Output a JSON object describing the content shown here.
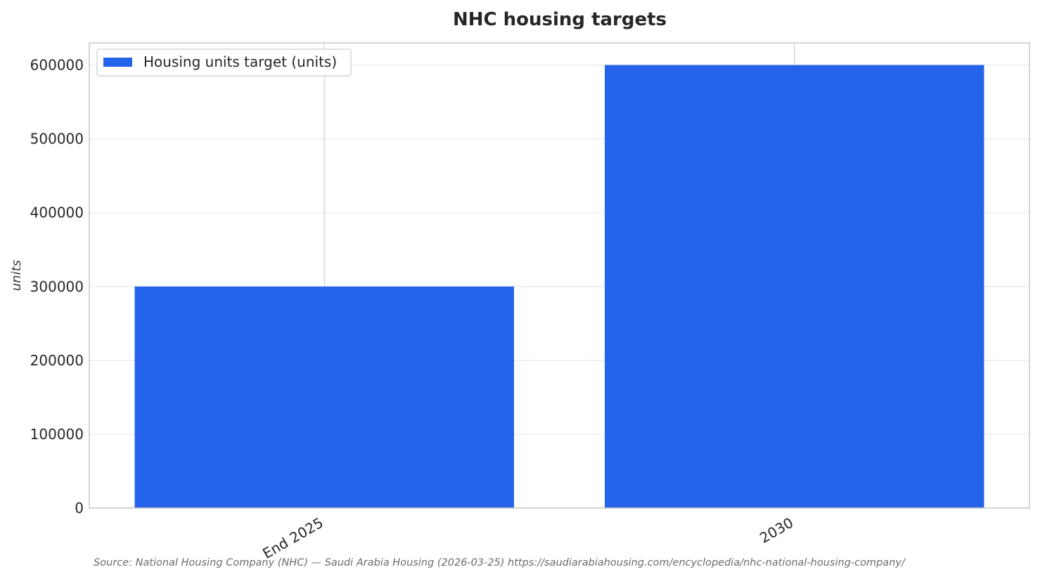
{
  "chart_data": {
    "type": "bar",
    "title": "NHC housing targets",
    "categories": [
      "End 2025",
      "2030"
    ],
    "series": [
      {
        "name": "Housing units target (units)",
        "values": [
          300000,
          600000
        ],
        "color": "#2563eb"
      }
    ],
    "ylabel": "units",
    "xlabel": "",
    "ylim": [
      0,
      630000
    ],
    "yticks": [
      0,
      100000,
      200000,
      300000,
      400000,
      500000,
      600000
    ],
    "ytick_labels": [
      "0",
      "100000",
      "200000",
      "300000",
      "400000",
      "500000",
      "600000"
    ],
    "grid": true,
    "legend_position": "top-left"
  },
  "footer": {
    "source": "Source: National Housing Company (NHC) — Saudi Arabia Housing (2026-03-25) https://saudiarabiahousing.com/encyclopedia/nhc-national-housing-company/"
  }
}
